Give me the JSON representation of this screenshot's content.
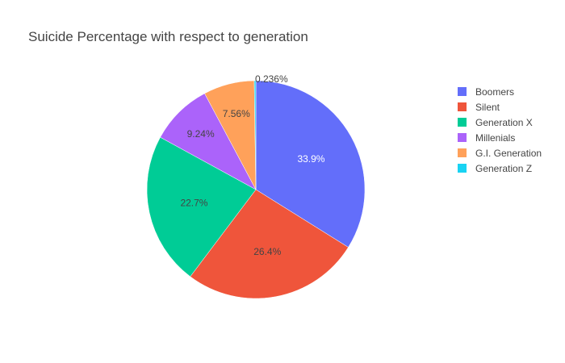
{
  "chart_data": {
    "type": "pie",
    "title": "Suicide Percentage with respect to generation",
    "legend_position": "right",
    "sort_order": "descending",
    "direction": "clockwise",
    "start": "12-o-clock",
    "slices": [
      {
        "label": "Boomers",
        "value": 33.9,
        "text": "33.9%",
        "color": "#636efa",
        "text_color": "#ffffff"
      },
      {
        "label": "Silent",
        "value": 26.4,
        "text": "26.4%",
        "color": "#ef553b",
        "text_color": "#444444"
      },
      {
        "label": "Generation X",
        "value": 22.7,
        "text": "22.7%",
        "color": "#00cc96",
        "text_color": "#444444"
      },
      {
        "label": "Millenials",
        "value": 9.24,
        "text": "9.24%",
        "color": "#ab63fa",
        "text_color": "#444444"
      },
      {
        "label": "G.I. Generation",
        "value": 7.56,
        "text": "7.56%",
        "color": "#ffa15a",
        "text_color": "#444444"
      },
      {
        "label": "Generation Z",
        "value": 0.236,
        "text": "0.236%",
        "color": "#19d3f3",
        "text_color": "#444444"
      }
    ]
  }
}
